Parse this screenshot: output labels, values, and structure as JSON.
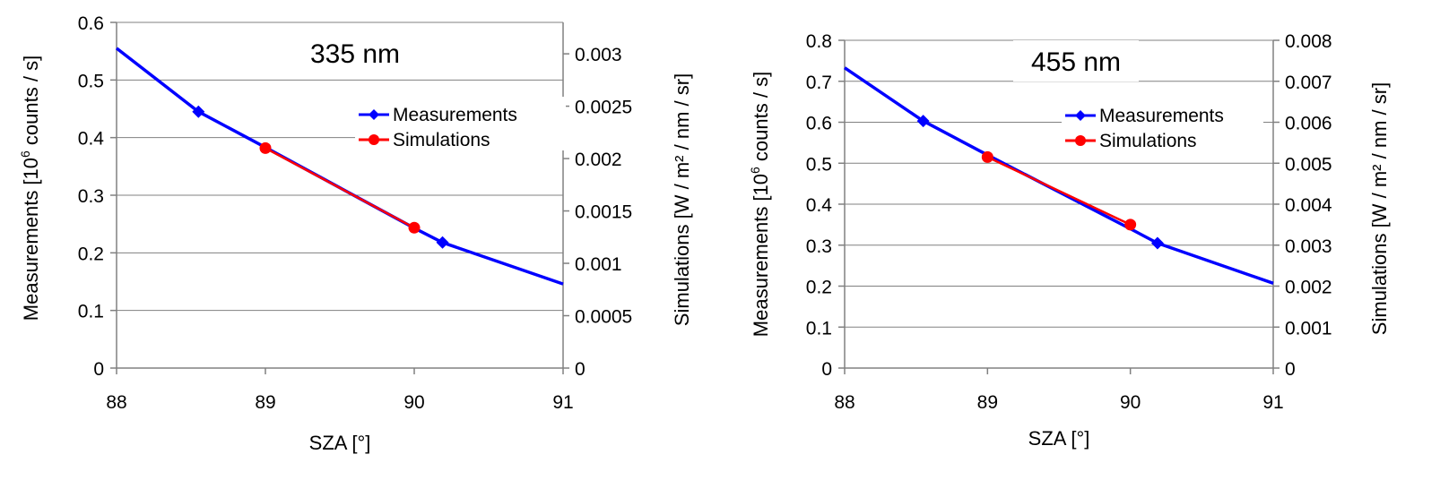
{
  "chart_data": [
    {
      "type": "line",
      "title": "335 nm",
      "xlabel": "SZA [°]",
      "ylabel_main": "Measurements [10",
      "ylabel_sup": "6",
      "ylabel_rest": " counts / s]",
      "y2label": "Simulations [W / m² / nm / sr]",
      "xlim": [
        88,
        91
      ],
      "ylim": [
        0,
        0.6
      ],
      "y2lim": [
        0,
        0.0033
      ],
      "xticks": [
        "88",
        "89",
        "90",
        "91"
      ],
      "yticks": [
        "0",
        "0.1",
        "0.2",
        "0.3",
        "0.4",
        "0.5",
        "0.6"
      ],
      "y2ticks": [
        "0",
        "0.0005",
        "0.001",
        "0.0015",
        "0.002",
        "0.0025",
        "0.003"
      ],
      "grid": "horizontal",
      "legend": "upper-right",
      "series": [
        {
          "name": "Measurements",
          "axis": "left",
          "color": "#0000ff",
          "marker": "diamond",
          "x": [
            88.0,
            88.55,
            89.0,
            90.0,
            90.19,
            91.0
          ],
          "y": [
            0.555,
            0.445,
            0.383,
            0.243,
            0.218,
            0.146
          ],
          "marker_index": [
            1,
            4
          ]
        },
        {
          "name": "Simulations",
          "axis": "right",
          "color": "#ff0000",
          "marker": "circle",
          "x": [
            89.0,
            90.0
          ],
          "y": [
            0.0021,
            0.00134
          ],
          "marker_index": [
            0,
            1
          ]
        }
      ]
    },
    {
      "type": "line",
      "title": "455 nm",
      "xlabel": "SZA [°]",
      "ylabel_main": "Measurements [10",
      "ylabel_sup": "6",
      "ylabel_rest": " counts / s]",
      "y2label": "Simulations [W / m² / nm / sr]",
      "xlim": [
        88,
        91
      ],
      "ylim": [
        0,
        0.8
      ],
      "y2lim": [
        0,
        0.008
      ],
      "xticks": [
        "88",
        "89",
        "90",
        "91"
      ],
      "yticks": [
        "0",
        "0.1",
        "0.2",
        "0.3",
        "0.4",
        "0.5",
        "0.6",
        "0.7",
        "0.8"
      ],
      "y2ticks": [
        "0",
        "0.001",
        "0.002",
        "0.003",
        "0.004",
        "0.005",
        "0.006",
        "0.007",
        "0.008"
      ],
      "grid": "horizontal",
      "legend": "upper-right",
      "series": [
        {
          "name": "Measurements",
          "axis": "left",
          "color": "#0000ff",
          "marker": "diamond",
          "x": [
            88.0,
            88.55,
            89.0,
            90.0,
            90.19,
            91.0
          ],
          "y": [
            0.733,
            0.603,
            0.52,
            0.34,
            0.305,
            0.207
          ],
          "marker_index": [
            1,
            4
          ]
        },
        {
          "name": "Simulations",
          "axis": "right",
          "color": "#ff0000",
          "marker": "circle",
          "x": [
            89.0,
            90.0
          ],
          "y": [
            0.00515,
            0.0035
          ],
          "marker_index": [
            0,
            1
          ]
        }
      ]
    }
  ]
}
